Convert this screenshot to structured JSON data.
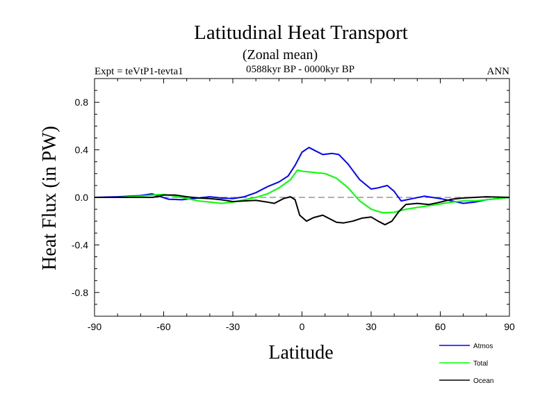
{
  "chart_data": {
    "type": "line",
    "title": "Latitudinal Heat Transport",
    "subtitle": "(Zonal mean)",
    "period": "0588kyr BP - 0000kyr BP",
    "expt_label": "Expt = teVtP1-tevta1",
    "season": "ANN",
    "xlabel": "Latitude",
    "ylabel": "Heat Flux (in PW)",
    "xlim": [
      -90,
      90
    ],
    "ylim": [
      -1.0,
      1.0
    ],
    "x_ticks": [
      -90,
      -60,
      -30,
      0,
      30,
      60,
      90
    ],
    "x_tick_labels": [
      "-90",
      "-60",
      "-30",
      "0",
      "30",
      "60",
      "90"
    ],
    "y_ticks": [
      -0.8,
      -0.4,
      0.0,
      0.4,
      0.8
    ],
    "y_tick_labels": [
      "-0.8",
      "-0.4",
      "0.0",
      "0.4",
      "0.8"
    ],
    "zero_line": {
      "y": 0,
      "style": "dashed",
      "color": "#808080"
    },
    "series": [
      {
        "name": "Atmos",
        "color": "#0000ff",
        "points": [
          [
            -90,
            0
          ],
          [
            -80,
            0.005
          ],
          [
            -70,
            0.015
          ],
          [
            -65,
            0.03
          ],
          [
            -62,
            0.01
          ],
          [
            -58,
            -0.015
          ],
          [
            -52,
            -0.02
          ],
          [
            -45,
            -0.005
          ],
          [
            -40,
            0.005
          ],
          [
            -35,
            -0.005
          ],
          [
            -30,
            -0.01
          ],
          [
            -25,
            0.005
          ],
          [
            -20,
            0.04
          ],
          [
            -15,
            0.09
          ],
          [
            -10,
            0.13
          ],
          [
            -6,
            0.18
          ],
          [
            -3,
            0.27
          ],
          [
            0,
            0.38
          ],
          [
            3,
            0.42
          ],
          [
            6,
            0.39
          ],
          [
            9,
            0.36
          ],
          [
            13,
            0.37
          ],
          [
            16,
            0.36
          ],
          [
            20,
            0.28
          ],
          [
            25,
            0.15
          ],
          [
            30,
            0.07
          ],
          [
            33,
            0.08
          ],
          [
            37,
            0.1
          ],
          [
            40,
            0.05
          ],
          [
            43,
            -0.03
          ],
          [
            48,
            -0.01
          ],
          [
            53,
            0.01
          ],
          [
            60,
            -0.01
          ],
          [
            65,
            -0.03
          ],
          [
            70,
            -0.05
          ],
          [
            75,
            -0.04
          ],
          [
            80,
            -0.02
          ],
          [
            85,
            -0.01
          ],
          [
            90,
            0
          ]
        ]
      },
      {
        "name": "Total",
        "color": "#00ff00",
        "points": [
          [
            -90,
            0
          ],
          [
            -80,
            0
          ],
          [
            -70,
            0.01
          ],
          [
            -65,
            0.02
          ],
          [
            -60,
            0.025
          ],
          [
            -55,
            0.01
          ],
          [
            -50,
            -0.01
          ],
          [
            -45,
            -0.03
          ],
          [
            -40,
            -0.04
          ],
          [
            -35,
            -0.05
          ],
          [
            -30,
            -0.04
          ],
          [
            -25,
            -0.02
          ],
          [
            -20,
            0
          ],
          [
            -15,
            0.03
          ],
          [
            -10,
            0.08
          ],
          [
            -5,
            0.15
          ],
          [
            -2,
            0.23
          ],
          [
            0,
            0.22
          ],
          [
            5,
            0.21
          ],
          [
            10,
            0.2
          ],
          [
            15,
            0.16
          ],
          [
            20,
            0.08
          ],
          [
            25,
            -0.03
          ],
          [
            30,
            -0.1
          ],
          [
            35,
            -0.13
          ],
          [
            40,
            -0.125
          ],
          [
            45,
            -0.1
          ],
          [
            50,
            -0.085
          ],
          [
            55,
            -0.07
          ],
          [
            60,
            -0.055
          ],
          [
            65,
            -0.04
          ],
          [
            70,
            -0.03
          ],
          [
            75,
            -0.03
          ],
          [
            80,
            -0.02
          ],
          [
            85,
            -0.01
          ],
          [
            90,
            0
          ]
        ]
      },
      {
        "name": "Ocean",
        "color": "#000000",
        "points": [
          [
            -90,
            0
          ],
          [
            -75,
            0
          ],
          [
            -65,
            0
          ],
          [
            -62,
            0.01
          ],
          [
            -60,
            0.02
          ],
          [
            -55,
            0.02
          ],
          [
            -50,
            0.005
          ],
          [
            -45,
            -0.005
          ],
          [
            -40,
            -0.01
          ],
          [
            -35,
            -0.02
          ],
          [
            -30,
            -0.035
          ],
          [
            -25,
            -0.03
          ],
          [
            -20,
            -0.025
          ],
          [
            -15,
            -0.04
          ],
          [
            -12,
            -0.05
          ],
          [
            -8,
            -0.01
          ],
          [
            -5,
            0.005
          ],
          [
            -3,
            -0.02
          ],
          [
            -1,
            -0.15
          ],
          [
            2,
            -0.2
          ],
          [
            5,
            -0.17
          ],
          [
            9,
            -0.15
          ],
          [
            12,
            -0.18
          ],
          [
            15,
            -0.21
          ],
          [
            18,
            -0.215
          ],
          [
            22,
            -0.2
          ],
          [
            26,
            -0.175
          ],
          [
            30,
            -0.165
          ],
          [
            33,
            -0.2
          ],
          [
            36,
            -0.23
          ],
          [
            39,
            -0.2
          ],
          [
            42,
            -0.12
          ],
          [
            45,
            -0.06
          ],
          [
            50,
            -0.05
          ],
          [
            55,
            -0.06
          ],
          [
            60,
            -0.04
          ],
          [
            65,
            -0.015
          ],
          [
            70,
            -0.005
          ],
          [
            80,
            0.005
          ],
          [
            90,
            0
          ]
        ]
      }
    ],
    "legend": {
      "placement": "bottom-right",
      "entries": [
        "Atmos",
        "Total",
        "Ocean"
      ]
    }
  }
}
